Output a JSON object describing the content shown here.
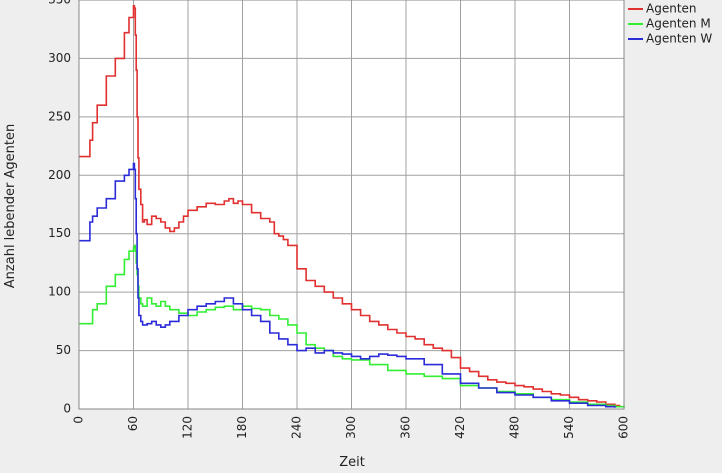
{
  "chart_data": {
    "type": "line",
    "xlabel": "Zeit",
    "ylabel": "Anzahl lebender Agenten",
    "xlim": [
      0,
      600
    ],
    "ylim": [
      0,
      350
    ],
    "x_ticks": [
      0,
      60,
      120,
      180,
      240,
      300,
      360,
      420,
      480,
      540,
      600
    ],
    "y_ticks": [
      0,
      50,
      100,
      150,
      200,
      250,
      300,
      350
    ],
    "x_tick_labels": [
      "0",
      "60",
      "120",
      "180",
      "240",
      "300",
      "360",
      "420",
      "480",
      "540",
      "600"
    ],
    "y_tick_labels": [
      "0",
      "50",
      "100",
      "150",
      "200",
      "250",
      "300",
      "350"
    ],
    "grid": true,
    "legend_position": "top-right",
    "series": [
      {
        "name": "Agenten",
        "color": "#e03030",
        "x": [
          0,
          10,
          12,
          15,
          20,
          30,
          40,
          50,
          55,
          60,
          61,
          62,
          63,
          64,
          65,
          66,
          68,
          70,
          72,
          75,
          80,
          85,
          90,
          95,
          100,
          105,
          110,
          115,
          120,
          130,
          140,
          150,
          160,
          165,
          170,
          175,
          180,
          190,
          200,
          210,
          215,
          220,
          225,
          230,
          240,
          250,
          260,
          270,
          280,
          290,
          300,
          310,
          320,
          330,
          340,
          350,
          360,
          370,
          380,
          390,
          400,
          410,
          420,
          430,
          440,
          450,
          460,
          470,
          480,
          490,
          500,
          510,
          520,
          530,
          540,
          550,
          560,
          570,
          580,
          590,
          595
        ],
        "values": [
          216,
          216,
          230,
          245,
          260,
          285,
          300,
          322,
          335,
          345,
          343,
          320,
          290,
          250,
          215,
          188,
          175,
          160,
          162,
          158,
          165,
          163,
          160,
          155,
          152,
          155,
          160,
          165,
          170,
          173,
          176,
          175,
          178,
          180,
          176,
          178,
          175,
          168,
          163,
          160,
          150,
          148,
          145,
          140,
          120,
          110,
          105,
          100,
          95,
          90,
          85,
          80,
          75,
          72,
          68,
          65,
          62,
          60,
          55,
          52,
          50,
          44,
          35,
          32,
          28,
          25,
          23,
          22,
          20,
          19,
          17,
          15,
          13,
          12,
          10,
          8,
          7,
          6,
          4,
          3,
          2
        ]
      },
      {
        "name": "Agenten M",
        "color": "#33ee33",
        "x": [
          0,
          10,
          15,
          20,
          30,
          40,
          50,
          55,
          60,
          61,
          62,
          63,
          64,
          65,
          66,
          68,
          70,
          75,
          80,
          85,
          90,
          95,
          100,
          110,
          120,
          130,
          140,
          150,
          160,
          170,
          180,
          190,
          200,
          210,
          220,
          230,
          240,
          250,
          260,
          270,
          280,
          290,
          300,
          320,
          340,
          360,
          380,
          400,
          420,
          440,
          460,
          480,
          500,
          520,
          540,
          560,
          580,
          590,
          600
        ],
        "values": [
          73,
          73,
          85,
          90,
          105,
          115,
          128,
          135,
          138,
          140,
          135,
          125,
          115,
          105,
          95,
          90,
          88,
          95,
          90,
          88,
          92,
          88,
          85,
          82,
          80,
          83,
          85,
          87,
          88,
          85,
          88,
          86,
          85,
          80,
          77,
          72,
          65,
          55,
          52,
          50,
          45,
          43,
          42,
          38,
          33,
          30,
          28,
          26,
          20,
          18,
          15,
          13,
          10,
          8,
          6,
          4,
          3,
          2,
          1
        ]
      },
      {
        "name": "Agenten W",
        "color": "#2b2bd8",
        "x": [
          0,
          10,
          12,
          15,
          20,
          30,
          40,
          50,
          55,
          60,
          61,
          62,
          63,
          64,
          65,
          66,
          68,
          70,
          75,
          80,
          85,
          90,
          95,
          100,
          110,
          120,
          130,
          140,
          150,
          160,
          170,
          180,
          190,
          200,
          210,
          220,
          230,
          240,
          250,
          260,
          270,
          280,
          290,
          300,
          310,
          320,
          330,
          340,
          350,
          360,
          380,
          400,
          420,
          440,
          460,
          480,
          500,
          520,
          540,
          560,
          580,
          590
        ],
        "values": [
          144,
          144,
          160,
          165,
          172,
          180,
          195,
          200,
          205,
          210,
          205,
          180,
          150,
          120,
          95,
          80,
          75,
          72,
          73,
          75,
          72,
          70,
          72,
          75,
          80,
          85,
          88,
          90,
          92,
          95,
          90,
          85,
          80,
          75,
          65,
          60,
          55,
          50,
          52,
          48,
          50,
          48,
          47,
          45,
          43,
          45,
          47,
          46,
          45,
          43,
          38,
          30,
          22,
          18,
          14,
          12,
          10,
          7,
          5,
          3,
          2,
          1
        ]
      }
    ]
  }
}
